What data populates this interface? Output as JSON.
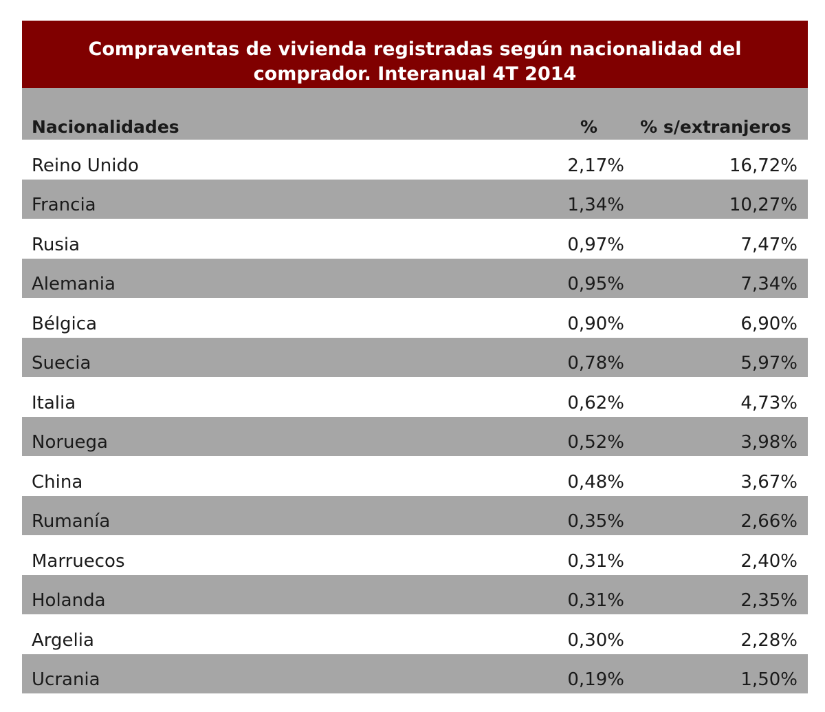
{
  "title": "Compraventas de vivienda registradas según nacionalidad del comprador. Interanual 4T 2014",
  "table": {
    "columns": [
      "Nacionalidades",
      "%",
      "% s/extranjeros"
    ],
    "rows": [
      [
        "Reino Unido",
        "2,17%",
        "16,72%"
      ],
      [
        "Francia",
        "1,34%",
        "10,27%"
      ],
      [
        "Rusia",
        "0,97%",
        "7,47%"
      ],
      [
        "Alemania",
        "0,95%",
        "7,34%"
      ],
      [
        "Bélgica",
        "0,90%",
        "6,90%"
      ],
      [
        "Suecia",
        "0,78%",
        "5,97%"
      ],
      [
        "Italia",
        "0,62%",
        "4,73%"
      ],
      [
        "Noruega",
        "0,52%",
        "3,98%"
      ],
      [
        "China",
        "0,48%",
        "3,67%"
      ],
      [
        "Rumanía",
        "0,35%",
        "2,66%"
      ],
      [
        "Marruecos",
        "0,31%",
        "2,40%"
      ],
      [
        "Holanda",
        "0,31%",
        "2,35%"
      ],
      [
        "Argelia",
        "0,30%",
        "2,28%"
      ],
      [
        "Ucrania",
        "0,19%",
        "1,50%"
      ]
    ]
  }
}
